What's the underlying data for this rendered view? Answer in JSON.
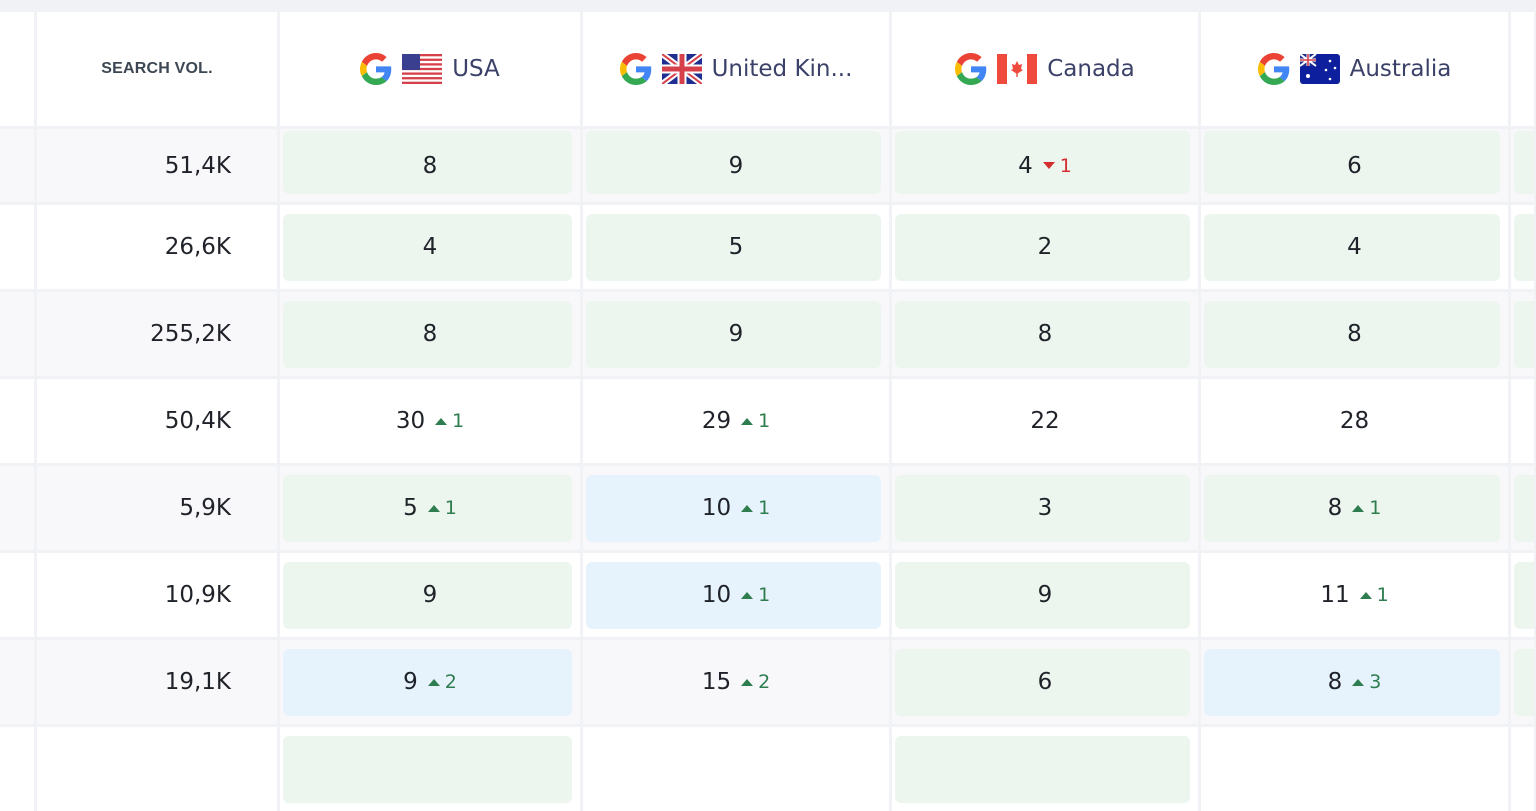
{
  "header": {
    "search_vol": "SEARCH VOL.",
    "engine_icon": "google-icon",
    "countries": [
      {
        "name": "USA",
        "flag": "us-flag-icon"
      },
      {
        "name": "United Kin...",
        "flag": "uk-flag-icon"
      },
      {
        "name": "Canada",
        "flag": "canada-flag-icon"
      },
      {
        "name": "Australia",
        "flag": "australia-flag-icon"
      }
    ]
  },
  "colors": {
    "green_badge": "#ecf6ee",
    "blue_badge": "#e6f3fd",
    "up": "#2e7d4f",
    "down": "#d32f2f"
  },
  "rows": [
    {
      "volume": "51,4K",
      "positions": [
        {
          "value": "8",
          "bg": "green"
        },
        {
          "value": "9",
          "bg": "green"
        },
        {
          "value": "4",
          "delta": "1",
          "dir": "down",
          "bg": "green"
        },
        {
          "value": "6",
          "bg": "green"
        }
      ],
      "extra_bg": "green"
    },
    {
      "volume": "26,6K",
      "positions": [
        {
          "value": "4",
          "bg": "green"
        },
        {
          "value": "5",
          "bg": "green"
        },
        {
          "value": "2",
          "bg": "green"
        },
        {
          "value": "4",
          "bg": "green"
        }
      ],
      "extra_bg": "green"
    },
    {
      "volume": "255,2K",
      "positions": [
        {
          "value": "8",
          "bg": "green"
        },
        {
          "value": "9",
          "bg": "green"
        },
        {
          "value": "8",
          "bg": "green"
        },
        {
          "value": "8",
          "bg": "green"
        }
      ],
      "extra_bg": "green"
    },
    {
      "volume": "50,4K",
      "positions": [
        {
          "value": "30",
          "delta": "1",
          "dir": "up",
          "bg": "none"
        },
        {
          "value": "29",
          "delta": "1",
          "dir": "up",
          "bg": "none"
        },
        {
          "value": "22",
          "bg": "none"
        },
        {
          "value": "28",
          "bg": "none"
        }
      ],
      "extra_bg": "none"
    },
    {
      "volume": "5,9K",
      "positions": [
        {
          "value": "5",
          "delta": "1",
          "dir": "up",
          "bg": "green"
        },
        {
          "value": "10",
          "delta": "1",
          "dir": "up",
          "bg": "blue"
        },
        {
          "value": "3",
          "bg": "green"
        },
        {
          "value": "8",
          "delta": "1",
          "dir": "up",
          "bg": "green"
        }
      ],
      "extra_bg": "green"
    },
    {
      "volume": "10,9K",
      "positions": [
        {
          "value": "9",
          "bg": "green"
        },
        {
          "value": "10",
          "delta": "1",
          "dir": "up",
          "bg": "blue"
        },
        {
          "value": "9",
          "bg": "green"
        },
        {
          "value": "11",
          "delta": "1",
          "dir": "up",
          "bg": "none"
        }
      ],
      "extra_bg": "green"
    },
    {
      "volume": "19,1K",
      "positions": [
        {
          "value": "9",
          "delta": "2",
          "dir": "up",
          "bg": "blue"
        },
        {
          "value": "15",
          "delta": "2",
          "dir": "up",
          "bg": "none"
        },
        {
          "value": "6",
          "bg": "green"
        },
        {
          "value": "8",
          "delta": "3",
          "dir": "up",
          "bg": "blue"
        }
      ],
      "extra_bg": "green"
    },
    {
      "volume": "",
      "positions": [
        {
          "value": "",
          "bg": "green"
        },
        {
          "value": "",
          "bg": "none"
        },
        {
          "value": "",
          "bg": "green"
        },
        {
          "value": "",
          "bg": "none"
        }
      ],
      "extra_bg": "none"
    }
  ]
}
